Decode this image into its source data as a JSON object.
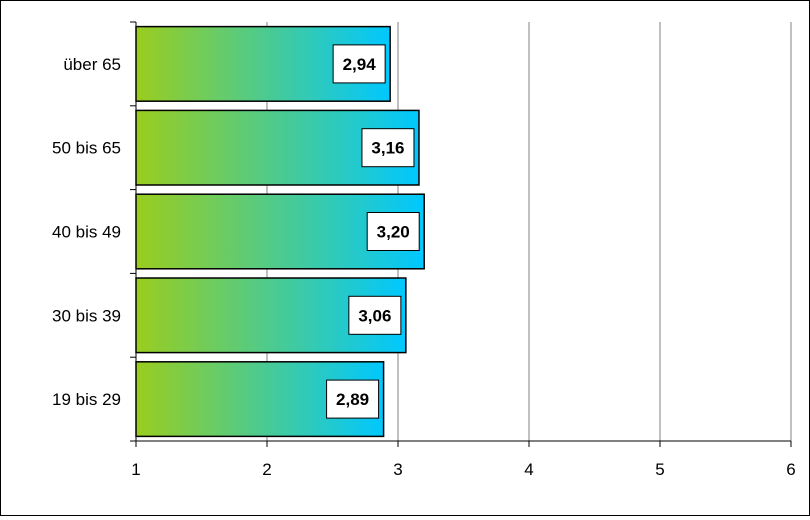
{
  "chart_data": {
    "type": "bar",
    "orientation": "horizontal",
    "categories": [
      "19 bis 29",
      "30 bis 39",
      "40 bis 49",
      "50 bis 65",
      "über 65"
    ],
    "values": [
      2.89,
      3.06,
      3.2,
      3.16,
      2.94
    ],
    "value_labels": [
      "2,89",
      "3,06",
      "3,20",
      "3,16",
      "2,94"
    ],
    "xlim": [
      1,
      6
    ],
    "x_ticks": [
      "1",
      "2",
      "3",
      "4",
      "5",
      "6"
    ],
    "grid": "vertical",
    "legend": "none",
    "colors": {
      "bar_gradient_start": "#9ACD1E",
      "bar_gradient_end": "#00C8FF",
      "bar_border": "#000000",
      "gridline": "#808080"
    }
  }
}
